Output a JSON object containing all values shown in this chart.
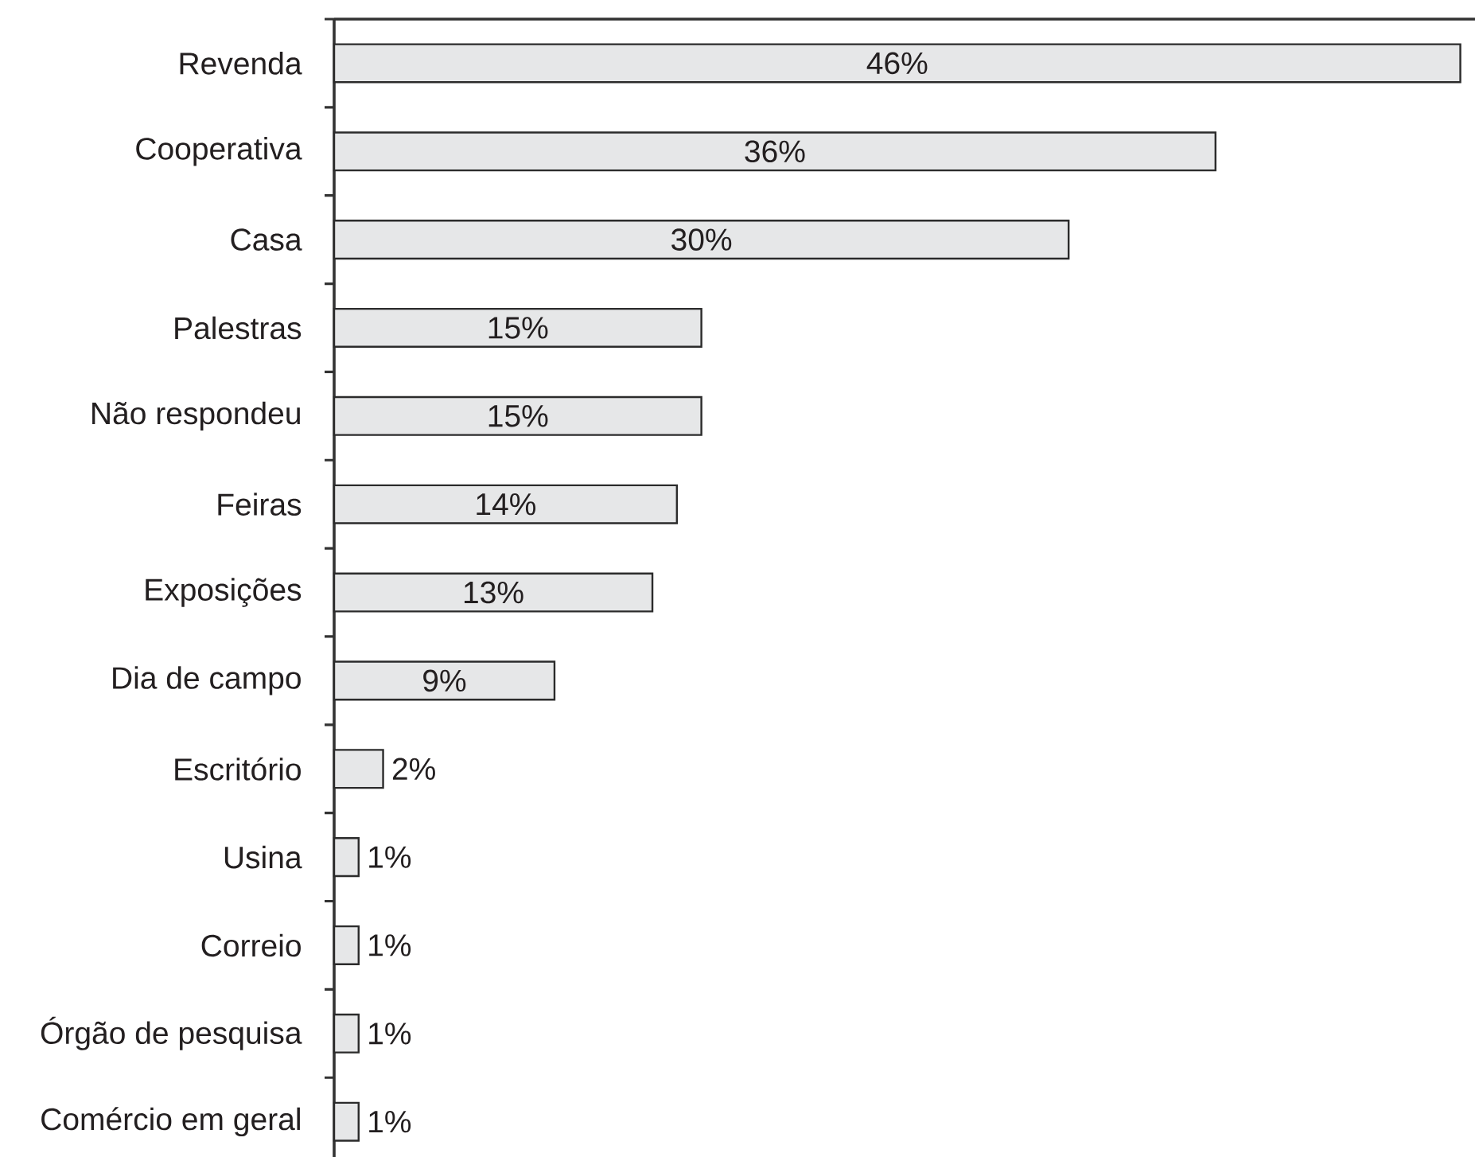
{
  "chart_data": {
    "type": "bar",
    "orientation": "horizontal",
    "categories": [
      "Revenda",
      "Cooperativa",
      "Casa",
      "Palestras",
      "Não respondeu",
      "Feiras",
      "Exposições",
      "Dia de campo",
      "Escritório",
      "Usina",
      "Correio",
      "Órgão de pesquisa",
      "Comércio em geral"
    ],
    "values": [
      46,
      36,
      30,
      15,
      15,
      14,
      13,
      9,
      2,
      1,
      1,
      1,
      1
    ],
    "value_labels": [
      "46%",
      "36%",
      "30%",
      "15%",
      "15%",
      "14%",
      "13%",
      "9%",
      "2%",
      "1%",
      "1%",
      "1%",
      "1%"
    ],
    "color": "#e6e7e8",
    "xlim": [
      0,
      46.6
    ]
  }
}
